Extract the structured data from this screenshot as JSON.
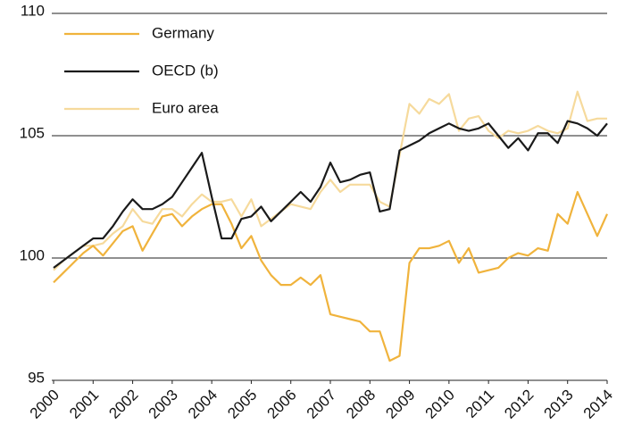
{
  "chart_data": {
    "type": "line",
    "x": [
      2000,
      2000.25,
      2000.5,
      2000.75,
      2001,
      2001.25,
      2001.5,
      2001.75,
      2002,
      2002.25,
      2002.5,
      2002.75,
      2003,
      2003.25,
      2003.5,
      2003.75,
      2004,
      2004.25,
      2004.5,
      2004.75,
      2005,
      2005.25,
      2005.5,
      2005.75,
      2006,
      2006.25,
      2006.5,
      2006.75,
      2007,
      2007.25,
      2007.5,
      2007.75,
      2008,
      2008.25,
      2008.5,
      2008.75,
      2009,
      2009.25,
      2009.5,
      2009.75,
      2010,
      2010.25,
      2010.5,
      2010.75,
      2011,
      2011.25,
      2011.5,
      2011.75,
      2012,
      2012.25,
      2012.5,
      2012.75,
      2013,
      2013.25,
      2013.5,
      2013.75,
      2014
    ],
    "series": [
      {
        "name": "Germany",
        "color": "#f0b33c",
        "values": [
          99.0,
          99.4,
          99.8,
          100.2,
          100.5,
          100.1,
          100.6,
          101.1,
          101.3,
          100.3,
          101.0,
          101.7,
          101.8,
          101.3,
          101.7,
          102.0,
          102.2,
          102.2,
          101.4,
          100.4,
          100.9,
          99.9,
          99.3,
          98.9,
          98.9,
          99.2,
          98.9,
          99.3,
          97.7,
          97.6,
          97.5,
          97.4,
          97.0,
          97.0,
          95.8,
          96.0,
          99.8,
          100.4,
          100.4,
          100.5,
          100.7,
          99.8,
          100.4,
          99.4,
          99.5,
          99.6,
          100.0,
          100.2,
          100.1,
          100.4,
          100.3,
          101.8,
          101.4,
          102.7,
          101.8,
          100.9,
          101.8
        ]
      },
      {
        "name": "OECD (b)",
        "color": "#1a1a1a",
        "values": [
          99.6,
          99.9,
          100.2,
          100.5,
          100.8,
          100.8,
          101.3,
          101.9,
          102.4,
          102.0,
          102.0,
          102.2,
          102.5,
          103.1,
          103.7,
          104.3,
          102.5,
          100.8,
          100.8,
          101.6,
          101.7,
          102.1,
          101.5,
          101.9,
          102.3,
          102.7,
          102.3,
          102.9,
          103.9,
          103.1,
          103.2,
          103.4,
          103.5,
          101.9,
          102.0,
          104.4,
          104.6,
          104.8,
          105.1,
          105.3,
          105.5,
          105.3,
          105.2,
          105.3,
          105.5,
          105.0,
          104.5,
          104.9,
          104.4,
          105.1,
          105.1,
          104.7,
          105.6,
          105.5,
          105.3,
          105.0,
          105.5
        ]
      },
      {
        "name": "Euro area",
        "color": "#f6da9c",
        "values": [
          99.5,
          99.9,
          100.2,
          100.5,
          100.5,
          100.6,
          101.0,
          101.3,
          102.0,
          101.5,
          101.4,
          102.0,
          102.0,
          101.7,
          102.2,
          102.6,
          102.3,
          102.3,
          102.4,
          101.7,
          102.4,
          101.3,
          101.6,
          101.9,
          102.2,
          102.1,
          102.0,
          102.7,
          103.2,
          102.7,
          103.0,
          103.0,
          103.0,
          102.3,
          102.1,
          104.2,
          106.3,
          105.9,
          106.5,
          106.3,
          106.7,
          105.2,
          105.7,
          105.8,
          105.2,
          104.9,
          105.2,
          105.1,
          105.2,
          105.4,
          105.2,
          105.1,
          105.3,
          106.8,
          105.6,
          105.7,
          105.7
        ]
      }
    ],
    "xlim": [
      2000,
      2014
    ],
    "xticks": [
      2000,
      2001,
      2002,
      2003,
      2004,
      2005,
      2006,
      2007,
      2008,
      2009,
      2010,
      2011,
      2012,
      2013,
      2014
    ],
    "ylim": [
      95,
      110
    ],
    "yticks": [
      95,
      100,
      105,
      110
    ],
    "grid": true,
    "legend": "upper left"
  }
}
